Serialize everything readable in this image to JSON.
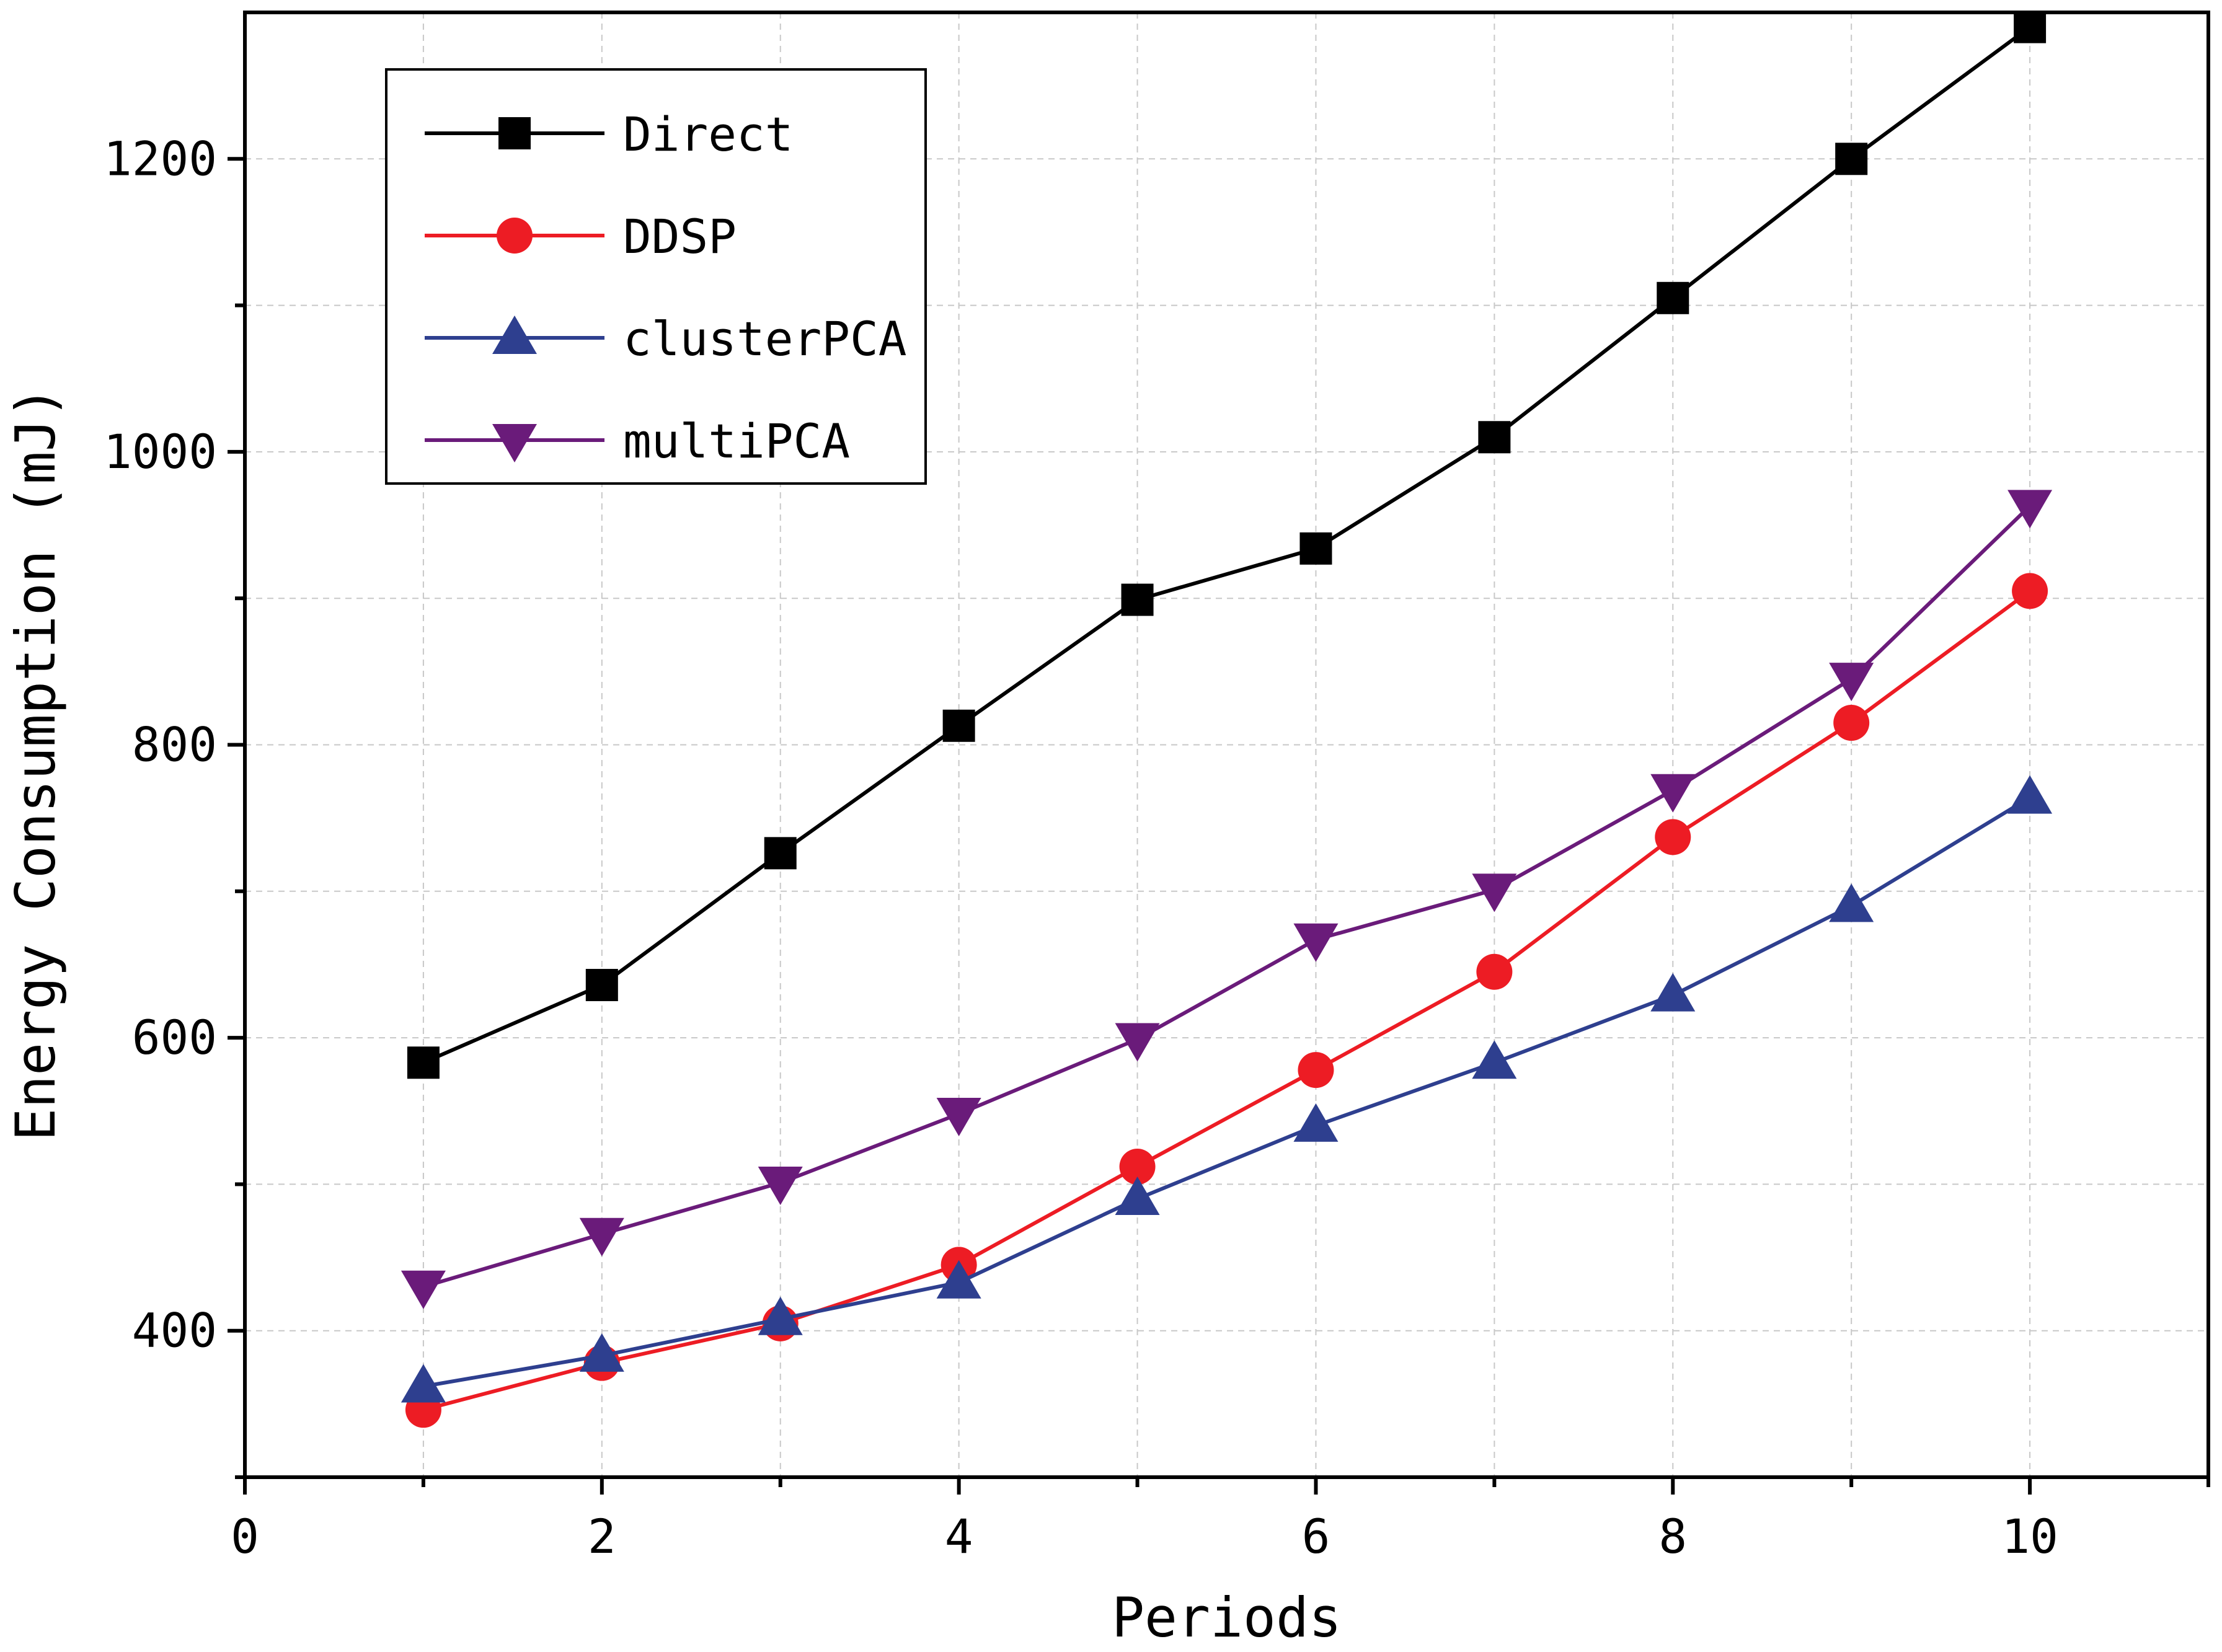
{
  "chart_data": {
    "type": "line",
    "title": "",
    "xlabel": "Periods",
    "ylabel": "Energy Consumption (mJ)",
    "xlim": [
      0,
      11
    ],
    "ylim": [
      300,
      1300
    ],
    "xticks": [
      0,
      2,
      4,
      6,
      8,
      10
    ],
    "xtick_labels": [
      "0",
      "2",
      "4",
      "6",
      "8",
      "10"
    ],
    "yticks": [
      400,
      600,
      800,
      1000,
      1200
    ],
    "ytick_labels": [
      "400",
      "600",
      "800",
      "1000",
      "1200"
    ],
    "x_minor_ticks": [
      1,
      3,
      5,
      7,
      9,
      11
    ],
    "y_minor_ticks": [
      300,
      500,
      700,
      900,
      1100
    ],
    "grid": true,
    "legend_position": "top-left",
    "x": [
      1,
      2,
      3,
      4,
      5,
      6,
      7,
      8,
      9,
      10
    ],
    "series": [
      {
        "name": "Direct",
        "color": "#000000",
        "marker": "square",
        "values": [
          583,
          636,
          726,
          813,
          899,
          934,
          1010,
          1105,
          1200,
          1290
        ]
      },
      {
        "name": "DDSP",
        "color": "#ed1c24",
        "marker": "circle",
        "values": [
          346,
          378,
          405,
          445,
          512,
          578,
          645,
          737,
          815,
          905
        ]
      },
      {
        "name": "clusterPCA",
        "color": "#2e3f8f",
        "marker": "triangle-up",
        "values": [
          362,
          383,
          408,
          433,
          490,
          540,
          583,
          629,
          690,
          764
        ]
      },
      {
        "name": "multiPCA",
        "color": "#6a1b7a",
        "marker": "triangle-down",
        "values": [
          430,
          466,
          501,
          548,
          599,
          667,
          701,
          769,
          845,
          963
        ]
      }
    ]
  }
}
